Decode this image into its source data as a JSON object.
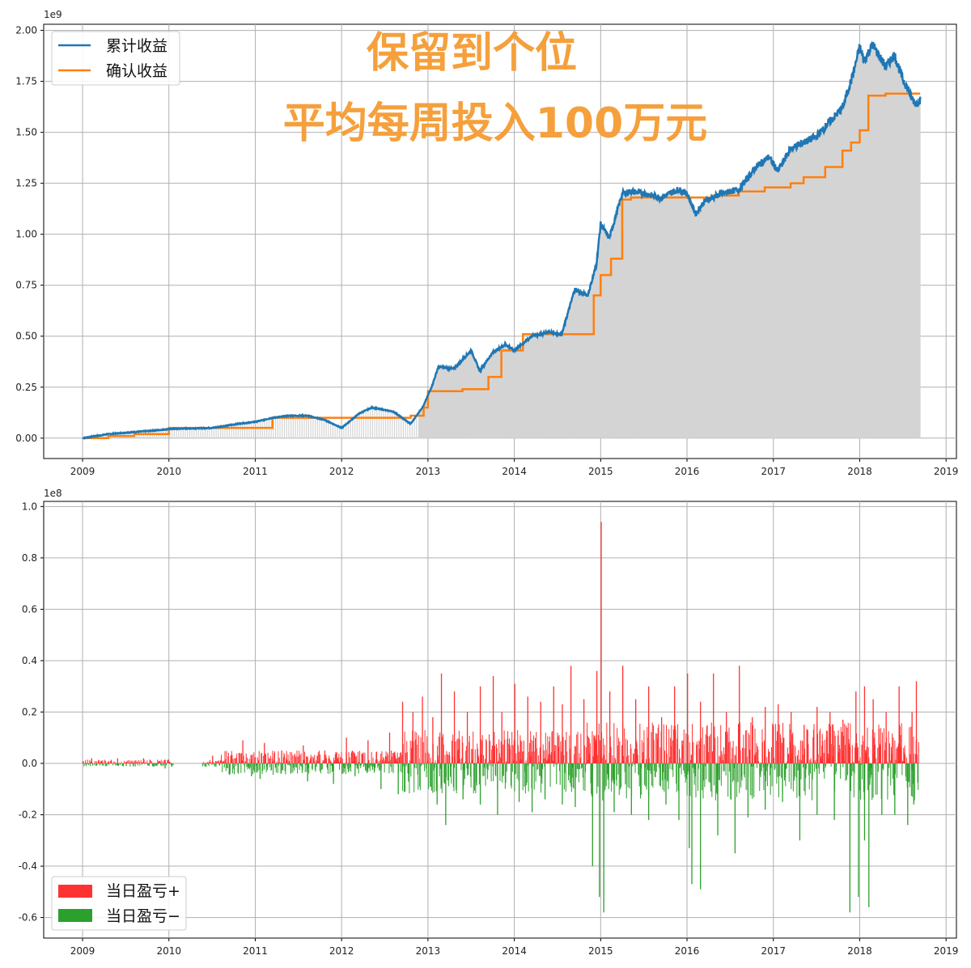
{
  "chart_data": [
    {
      "type": "line",
      "offset_label": "1e9",
      "x_ticks": [
        "2009",
        "2010",
        "2011",
        "2012",
        "2013",
        "2014",
        "2015",
        "2016",
        "2017",
        "2018",
        "2019"
      ],
      "y_ticks": [
        "0.00",
        "0.25",
        "0.50",
        "0.75",
        "1.00",
        "1.25",
        "1.50",
        "1.75",
        "2.00"
      ],
      "xlim": [
        2008.55,
        2019.12
      ],
      "ylim": [
        -0.1,
        2.03
      ],
      "grid": true,
      "legend": {
        "placement": "top-left"
      },
      "annotations": [
        "保留到个位",
        "平均每周投入100万元"
      ],
      "series": [
        {
          "name": "累计收益",
          "color": "#1f77b4",
          "x": [
            2009.0,
            2009.3,
            2009.6,
            2009.9,
            2010.0,
            2010.5,
            2010.8,
            2011.0,
            2011.2,
            2011.4,
            2011.6,
            2011.8,
            2012.0,
            2012.2,
            2012.35,
            2012.6,
            2012.8,
            2012.95,
            2013.05,
            2013.12,
            2013.3,
            2013.5,
            2013.6,
            2013.75,
            2013.9,
            2014.0,
            2014.2,
            2014.4,
            2014.55,
            2014.7,
            2014.85,
            2014.95,
            2015.0,
            2015.1,
            2015.25,
            2015.35,
            2015.5,
            2015.7,
            2015.9,
            2016.0,
            2016.1,
            2016.2,
            2016.4,
            2016.6,
            2016.8,
            2016.95,
            2017.05,
            2017.2,
            2017.35,
            2017.5,
            2017.65,
            2017.8,
            2017.92,
            2018.0,
            2018.05,
            2018.15,
            2018.3,
            2018.4,
            2018.5,
            2018.55,
            2018.6,
            2018.65,
            2018.7
          ],
          "values": [
            0.0,
            0.02,
            0.03,
            0.04,
            0.045,
            0.05,
            0.07,
            0.08,
            0.1,
            0.11,
            0.11,
            0.09,
            0.05,
            0.12,
            0.15,
            0.13,
            0.07,
            0.16,
            0.26,
            0.35,
            0.34,
            0.43,
            0.33,
            0.42,
            0.46,
            0.43,
            0.5,
            0.52,
            0.51,
            0.73,
            0.7,
            0.85,
            1.05,
            0.98,
            1.2,
            1.21,
            1.2,
            1.18,
            1.22,
            1.2,
            1.1,
            1.16,
            1.2,
            1.22,
            1.33,
            1.38,
            1.31,
            1.42,
            1.45,
            1.48,
            1.55,
            1.62,
            1.78,
            1.92,
            1.85,
            1.93,
            1.82,
            1.88,
            1.76,
            1.72,
            1.67,
            1.64,
            1.66
          ]
        },
        {
          "name": "确认收益",
          "color": "#ff7f0e",
          "x": [
            2009.0,
            2009.3,
            2009.6,
            2010.0,
            2010.5,
            2011.0,
            2011.2,
            2012.0,
            2012.8,
            2012.95,
            2013.0,
            2013.4,
            2013.7,
            2013.85,
            2014.1,
            2014.6,
            2014.92,
            2015.0,
            2015.12,
            2015.25,
            2015.35,
            2015.8,
            2016.3,
            2016.6,
            2016.9,
            2017.2,
            2017.35,
            2017.6,
            2017.8,
            2017.9,
            2018.0,
            2018.1,
            2018.3,
            2018.5,
            2018.7
          ],
          "values": [
            0.0,
            0.01,
            0.02,
            0.05,
            0.05,
            0.05,
            0.1,
            0.1,
            0.11,
            0.15,
            0.23,
            0.24,
            0.3,
            0.43,
            0.51,
            0.51,
            0.7,
            0.8,
            0.88,
            1.17,
            1.18,
            1.18,
            1.19,
            1.21,
            1.23,
            1.25,
            1.28,
            1.33,
            1.41,
            1.45,
            1.51,
            1.68,
            1.69,
            1.69,
            1.69
          ]
        }
      ]
    },
    {
      "type": "bar",
      "offset_label": "1e8",
      "x_ticks": [
        "2009",
        "2010",
        "2011",
        "2012",
        "2013",
        "2014",
        "2015",
        "2016",
        "2017",
        "2018",
        "2019"
      ],
      "y_ticks": [
        "1.0",
        "0.8",
        "0.6",
        "0.4",
        "0.2",
        "0.0",
        "-0.2",
        "-0.4",
        "-0.6"
      ],
      "xlim": [
        2008.55,
        2019.12
      ],
      "ylim": [
        -0.68,
        1.02
      ],
      "grid": true,
      "legend": {
        "placement": "bottom-left"
      },
      "series": [
        {
          "name": "当日盈亏+",
          "color": "#ff3232",
          "x": [
            2009.1,
            2009.4,
            2009.7,
            2010.5,
            2010.85,
            2011.1,
            2011.3,
            2011.55,
            2011.8,
            2012.05,
            2012.3,
            2012.55,
            2012.7,
            2012.82,
            2012.93,
            2013.05,
            2013.15,
            2013.3,
            2013.45,
            2013.6,
            2013.75,
            2013.85,
            2014.0,
            2014.15,
            2014.3,
            2014.45,
            2014.55,
            2014.65,
            2014.8,
            2014.95,
            2015.0,
            2015.1,
            2015.25,
            2015.4,
            2015.55,
            2015.7,
            2015.85,
            2016.0,
            2016.15,
            2016.3,
            2016.45,
            2016.6,
            2016.75,
            2016.9,
            2017.05,
            2017.2,
            2017.35,
            2017.5,
            2017.65,
            2017.8,
            2017.95,
            2018.05,
            2018.15,
            2018.3,
            2018.45,
            2018.6,
            2018.65
          ],
          "values": [
            0.02,
            0.02,
            0.02,
            0.03,
            0.09,
            0.08,
            0.05,
            0.07,
            0.05,
            0.1,
            0.09,
            0.12,
            0.24,
            0.2,
            0.26,
            0.18,
            0.35,
            0.28,
            0.2,
            0.3,
            0.34,
            0.2,
            0.31,
            0.26,
            0.24,
            0.3,
            0.23,
            0.38,
            0.25,
            0.36,
            0.94,
            0.28,
            0.38,
            0.25,
            0.3,
            0.18,
            0.3,
            0.35,
            0.24,
            0.35,
            0.2,
            0.38,
            0.18,
            0.22,
            0.23,
            0.2,
            0.15,
            0.22,
            0.2,
            0.17,
            0.28,
            0.3,
            0.25,
            0.2,
            0.3,
            0.2,
            0.32
          ]
        },
        {
          "name": "当日盈亏−",
          "color": "#2ca02c",
          "x": [
            2009.15,
            2009.5,
            2009.95,
            2010.95,
            2011.05,
            2011.6,
            2011.9,
            2012.15,
            2012.45,
            2012.65,
            2012.9,
            2013.1,
            2013.2,
            2013.4,
            2013.6,
            2013.8,
            2014.05,
            2014.2,
            2014.35,
            2014.55,
            2014.7,
            2014.9,
            2014.98,
            2015.03,
            2015.15,
            2015.35,
            2015.55,
            2015.75,
            2015.9,
            2016.02,
            2016.05,
            2016.15,
            2016.35,
            2016.55,
            2016.7,
            2016.9,
            2017.1,
            2017.3,
            2017.5,
            2017.7,
            2017.88,
            2017.98,
            2018.05,
            2018.1,
            2018.25,
            2018.4,
            2018.55,
            2018.62
          ],
          "values": [
            -0.01,
            -0.01,
            -0.02,
            -0.05,
            -0.06,
            -0.07,
            -0.08,
            -0.05,
            -0.1,
            -0.12,
            -0.09,
            -0.16,
            -0.24,
            -0.14,
            -0.16,
            -0.2,
            -0.15,
            -0.19,
            -0.14,
            -0.16,
            -0.17,
            -0.4,
            -0.52,
            -0.58,
            -0.19,
            -0.2,
            -0.22,
            -0.16,
            -0.22,
            -0.33,
            -0.47,
            -0.49,
            -0.28,
            -0.35,
            -0.21,
            -0.18,
            -0.15,
            -0.3,
            -0.2,
            -0.22,
            -0.58,
            -0.52,
            -0.3,
            -0.56,
            -0.2,
            -0.2,
            -0.24,
            -0.16
          ]
        }
      ]
    }
  ]
}
